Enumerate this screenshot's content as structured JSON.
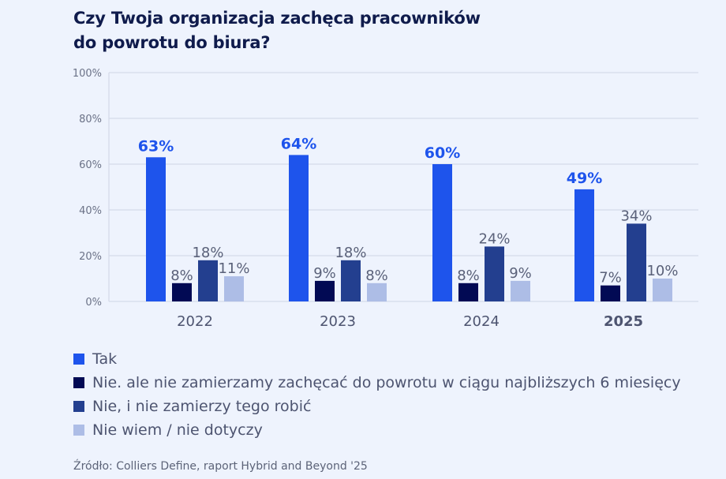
{
  "title_line1": "Czy Twoja organizacja zachęca pracowników",
  "title_line2": "do powrotu do biura?",
  "source": "Źródło: Colliers Define, raport Hybrid and Beyond '25",
  "chart_data": {
    "type": "bar",
    "title": "Czy Twoja organizacja zachęca pracowników do powrotu do biura?",
    "xlabel": "",
    "ylabel": "",
    "ylim": [
      0,
      100
    ],
    "y_ticks": [
      "0%",
      "20%",
      "40%",
      "60%",
      "80%",
      "100%"
    ],
    "categories": [
      "2022",
      "2023",
      "2024",
      "2025"
    ],
    "bold_category": "2025",
    "grid": true,
    "legend_position": "bottom",
    "series": [
      {
        "name": "Tak",
        "color": "#1e54ec",
        "values": [
          63,
          64,
          60,
          49
        ],
        "labels": [
          "63%",
          "64%",
          "60%",
          "49%"
        ],
        "bold_labels": true
      },
      {
        "name": "Nie. ale nie zamierzamy zachęcać do powrotu w ciągu najbliższych 6 miesięcy",
        "color": "#020a54",
        "values": [
          8,
          9,
          8,
          7
        ],
        "labels": [
          "8%",
          "9%",
          "8%",
          "7%"
        ]
      },
      {
        "name": "Nie, i nie zamierzy tego robić",
        "color": "#233f8f",
        "values": [
          18,
          18,
          24,
          34
        ],
        "labels": [
          "18%",
          "18%",
          "24%",
          "34%"
        ]
      },
      {
        "name": "Nie wiem / nie dotyczy",
        "color": "#adbde6",
        "values": [
          11,
          8,
          9,
          10
        ],
        "labels": [
          "11%",
          "8%",
          "9%",
          "10%"
        ]
      }
    ]
  }
}
